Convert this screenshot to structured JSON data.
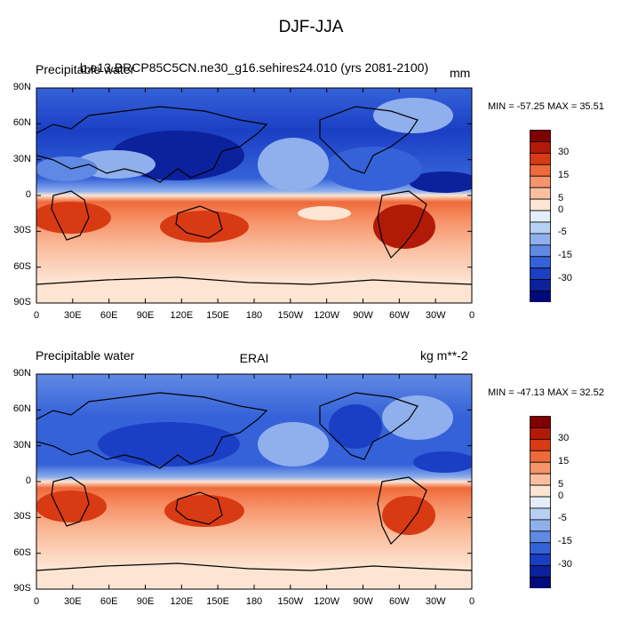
{
  "figure": {
    "title": "DJF-JJA"
  },
  "chart_data": [
    {
      "type": "heatmap",
      "left_label": "Precipitable water",
      "center_label": "b.e13.BRCP85C5CN.ne30_g16.sehires24.010 (yrs 2081-2100)",
      "units": "mm",
      "stats": "MIN = -57.25 MAX =  35.51",
      "x_ticks": [
        "0",
        "30E",
        "60E",
        "90E",
        "120E",
        "150E",
        "180",
        "150W",
        "120W",
        "90W",
        "60W",
        "30W",
        "0"
      ],
      "y_ticks": [
        "90N",
        "60N",
        "30N",
        "0",
        "30S",
        "60S",
        "90S"
      ],
      "xlim": [
        0,
        360
      ],
      "ylim": [
        -90,
        90
      ],
      "colorbar_ticks": [
        "30",
        "15",
        "5",
        "0",
        "-5",
        "-15",
        "-30"
      ],
      "colorbar_colors": [
        "#7f0000",
        "#b21a08",
        "#d83a14",
        "#ef6a3a",
        "#f6946a",
        "#fbbfa0",
        "#fde4d3",
        "#e3eefa",
        "#b6cff2",
        "#8fb0ec",
        "#5f89e3",
        "#3562d9",
        "#1a3fc4",
        "#0c219c",
        "#000a7a"
      ]
    },
    {
      "type": "heatmap",
      "left_label": "Precipitable water",
      "center_label": "ERAI",
      "units": "kg m**-2",
      "stats": "MIN = -47.13 MAX =  32.52",
      "x_ticks": [
        "0",
        "30E",
        "60E",
        "90E",
        "120E",
        "150E",
        "180",
        "150W",
        "120W",
        "90W",
        "60W",
        "30W",
        "0"
      ],
      "y_ticks": [
        "90N",
        "60N",
        "30N",
        "0",
        "30S",
        "60S",
        "90S"
      ],
      "xlim": [
        0,
        360
      ],
      "ylim": [
        -90,
        90
      ],
      "colorbar_ticks": [
        "30",
        "15",
        "5",
        "0",
        "-5",
        "-15",
        "-30"
      ],
      "colorbar_colors": [
        "#7f0000",
        "#b21a08",
        "#d83a14",
        "#ef6a3a",
        "#f6946a",
        "#fbbfa0",
        "#fde4d3",
        "#e3eefa",
        "#b6cff2",
        "#8fb0ec",
        "#5f89e3",
        "#3562d9",
        "#1a3fc4",
        "#0c219c",
        "#000a7a"
      ]
    }
  ]
}
